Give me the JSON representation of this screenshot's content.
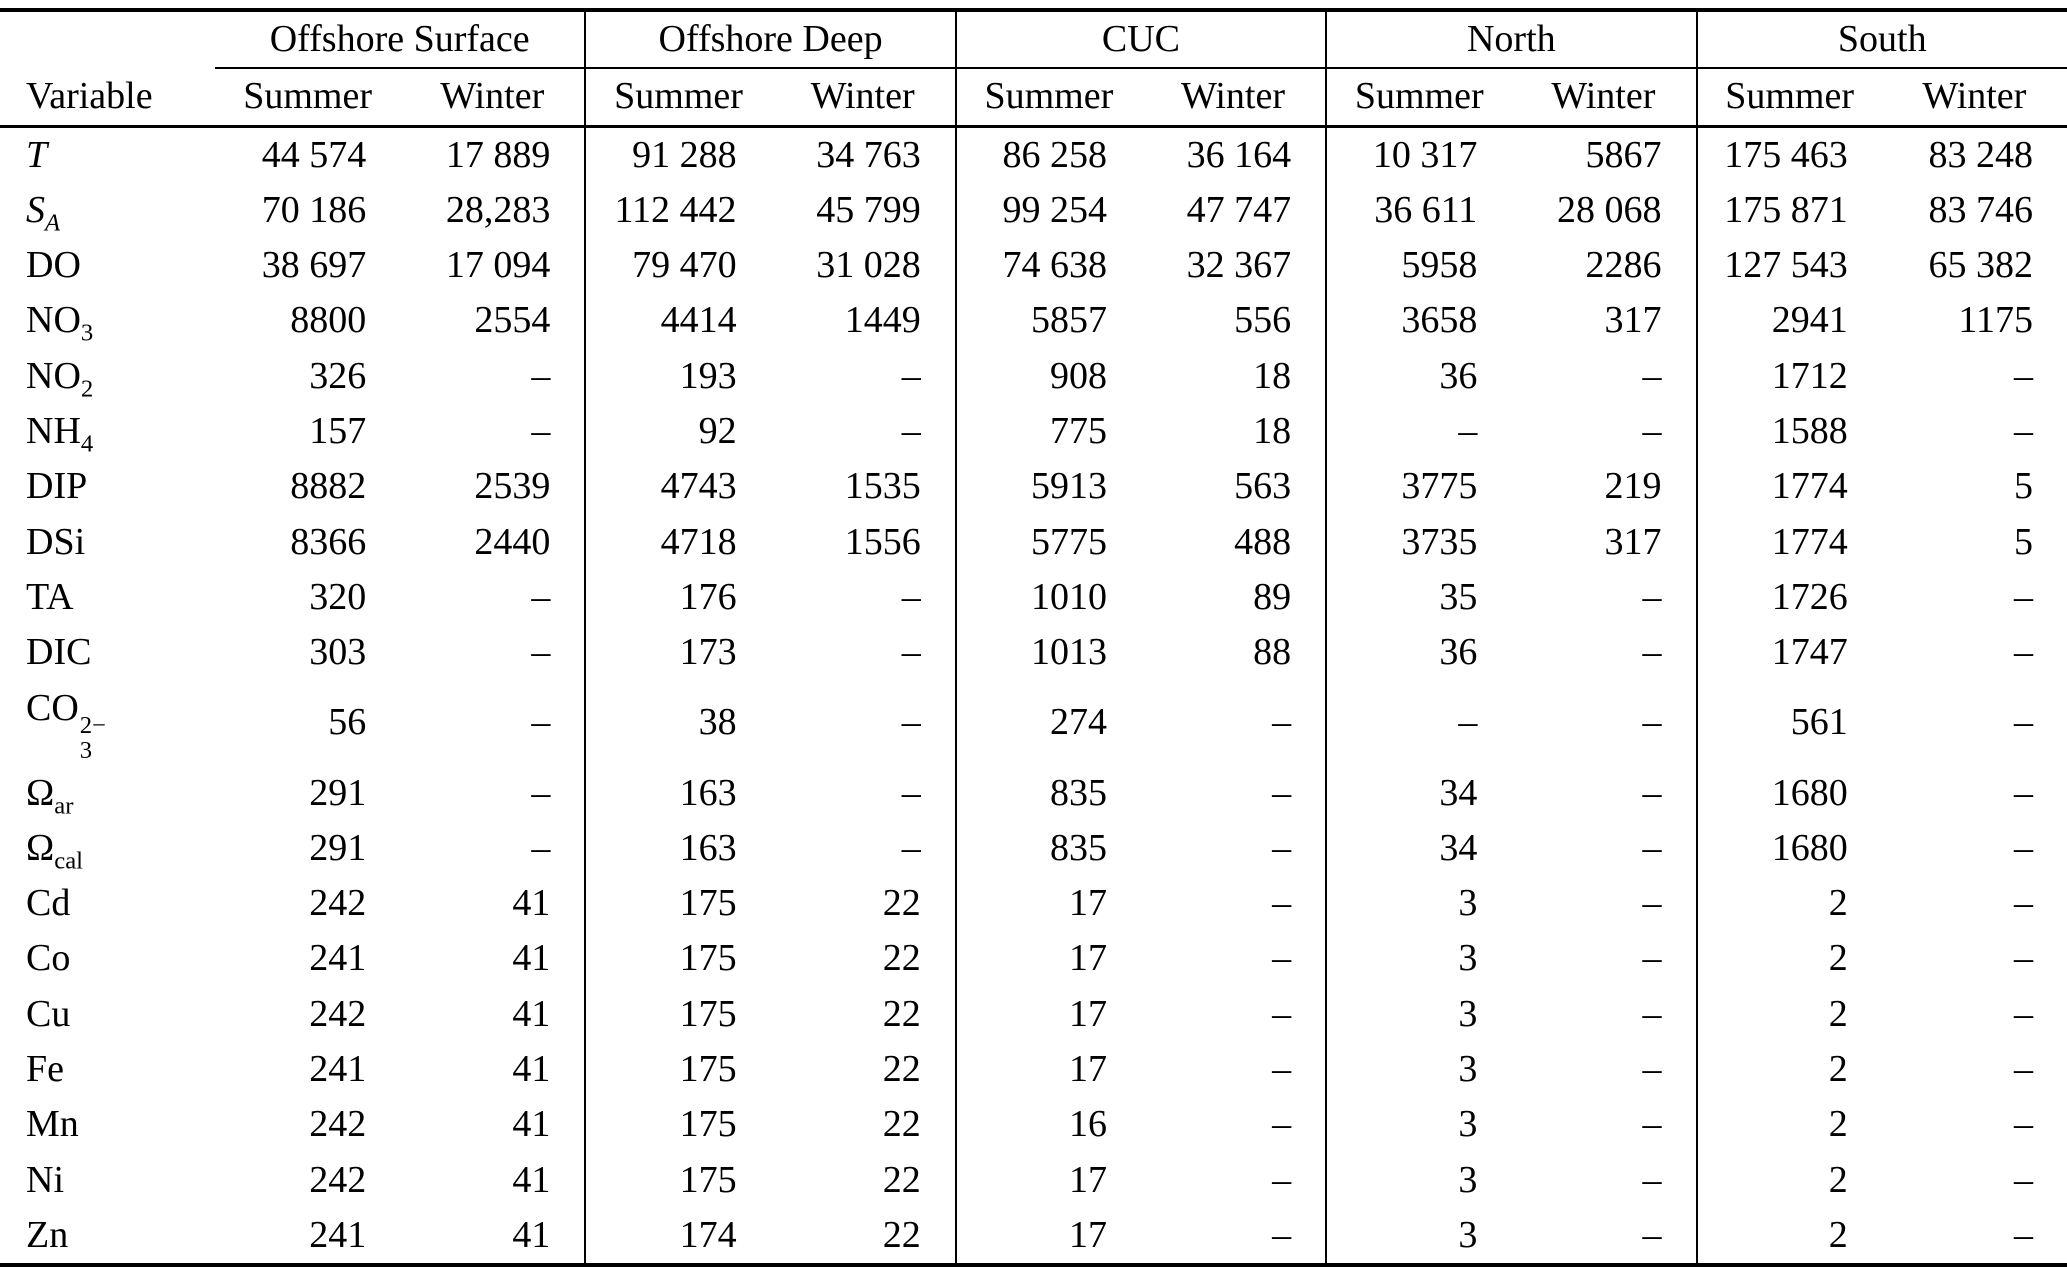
{
  "colors": {
    "background": "#ffffff",
    "text": "#000000",
    "rules": "#000000"
  },
  "table": {
    "variable_header": "Variable",
    "dash": "–",
    "groups": [
      {
        "label": "Offshore Surface",
        "sub": [
          "Summer",
          "Winter"
        ]
      },
      {
        "label": "Offshore Deep",
        "sub": [
          "Summer",
          "Winter"
        ]
      },
      {
        "label": "CUC",
        "sub": [
          "Summer",
          "Winter"
        ]
      },
      {
        "label": "North",
        "sub": [
          "Summer",
          "Winter"
        ]
      },
      {
        "label": "South",
        "sub": [
          "Summer",
          "Winter"
        ]
      }
    ],
    "rows": [
      {
        "label": [
          {
            "text": "T",
            "style": "italic"
          }
        ],
        "values": [
          "44 574",
          "17 889",
          "91 288",
          "34 763",
          "86 258",
          "36 164",
          "10 317",
          "5867",
          "175 463",
          "83 248"
        ]
      },
      {
        "label": [
          {
            "text": "S",
            "style": "italic"
          },
          {
            "text": "A",
            "style": "subitalic"
          }
        ],
        "values": [
          "70 186",
          "28,283",
          "112 442",
          "45 799",
          "99 254",
          "47 747",
          "36 611",
          "28 068",
          "175 871",
          "83 746"
        ]
      },
      {
        "label": [
          {
            "text": "DO"
          }
        ],
        "values": [
          "38 697",
          "17 094",
          "79 470",
          "31 028",
          "74 638",
          "32 367",
          "5958",
          "2286",
          "127 543",
          "65 382"
        ]
      },
      {
        "label": [
          {
            "text": "NO"
          },
          {
            "text": "3",
            "style": "sub"
          }
        ],
        "values": [
          "8800",
          "2554",
          "4414",
          "1449",
          "5857",
          "556",
          "3658",
          "317",
          "2941",
          "1175"
        ]
      },
      {
        "label": [
          {
            "text": "NO"
          },
          {
            "text": "2",
            "style": "sub"
          }
        ],
        "values": [
          "326",
          "–",
          "193",
          "–",
          "908",
          "18",
          "36",
          "–",
          "1712",
          "–"
        ]
      },
      {
        "label": [
          {
            "text": "NH"
          },
          {
            "text": "4",
            "style": "sub"
          }
        ],
        "values": [
          "157",
          "–",
          "92",
          "–",
          "775",
          "18",
          "–",
          "–",
          "1588",
          "–"
        ]
      },
      {
        "label": [
          {
            "text": "DIP"
          }
        ],
        "values": [
          "8882",
          "2539",
          "4743",
          "1535",
          "5913",
          "563",
          "3775",
          "219",
          "1774",
          "5"
        ]
      },
      {
        "label": [
          {
            "text": "DSi"
          }
        ],
        "values": [
          "8366",
          "2440",
          "4718",
          "1556",
          "5775",
          "488",
          "3735",
          "317",
          "1774",
          "5"
        ]
      },
      {
        "label": [
          {
            "text": "TA"
          }
        ],
        "values": [
          "320",
          "–",
          "176",
          "–",
          "1010",
          "89",
          "35",
          "–",
          "1726",
          "–"
        ]
      },
      {
        "label": [
          {
            "text": "DIC"
          }
        ],
        "values": [
          "303",
          "–",
          "173",
          "–",
          "1013",
          "88",
          "36",
          "–",
          "1747",
          "–"
        ]
      },
      {
        "label": [
          {
            "text": "CO"
          },
          {
            "style": "stack",
            "sup": "2−",
            "sub": "3"
          }
        ],
        "values": [
          "56",
          "–",
          "38",
          "–",
          "274",
          "–",
          "–",
          "–",
          "561",
          "–"
        ]
      },
      {
        "label": [
          {
            "text": "Ω"
          },
          {
            "text": "ar",
            "style": "sub"
          }
        ],
        "values": [
          "291",
          "–",
          "163",
          "–",
          "835",
          "–",
          "34",
          "–",
          "1680",
          "–"
        ]
      },
      {
        "label": [
          {
            "text": "Ω"
          },
          {
            "text": "cal",
            "style": "sub"
          }
        ],
        "values": [
          "291",
          "–",
          "163",
          "–",
          "835",
          "–",
          "34",
          "–",
          "1680",
          "–"
        ]
      },
      {
        "label": [
          {
            "text": "Cd"
          }
        ],
        "values": [
          "242",
          "41",
          "175",
          "22",
          "17",
          "–",
          "3",
          "–",
          "2",
          "–"
        ]
      },
      {
        "label": [
          {
            "text": "Co"
          }
        ],
        "values": [
          "241",
          "41",
          "175",
          "22",
          "17",
          "–",
          "3",
          "–",
          "2",
          "–"
        ]
      },
      {
        "label": [
          {
            "text": "Cu"
          }
        ],
        "values": [
          "242",
          "41",
          "175",
          "22",
          "17",
          "–",
          "3",
          "–",
          "2",
          "–"
        ]
      },
      {
        "label": [
          {
            "text": "Fe"
          }
        ],
        "values": [
          "241",
          "41",
          "175",
          "22",
          "17",
          "–",
          "3",
          "–",
          "2",
          "–"
        ]
      },
      {
        "label": [
          {
            "text": "Mn"
          }
        ],
        "values": [
          "242",
          "41",
          "175",
          "22",
          "16",
          "–",
          "3",
          "–",
          "2",
          "–"
        ]
      },
      {
        "label": [
          {
            "text": "Ni"
          }
        ],
        "values": [
          "242",
          "41",
          "175",
          "22",
          "17",
          "–",
          "3",
          "–",
          "2",
          "–"
        ]
      },
      {
        "label": [
          {
            "text": "Zn"
          }
        ],
        "values": [
          "241",
          "41",
          "174",
          "22",
          "17",
          "–",
          "3",
          "–",
          "2",
          "–"
        ]
      }
    ]
  }
}
